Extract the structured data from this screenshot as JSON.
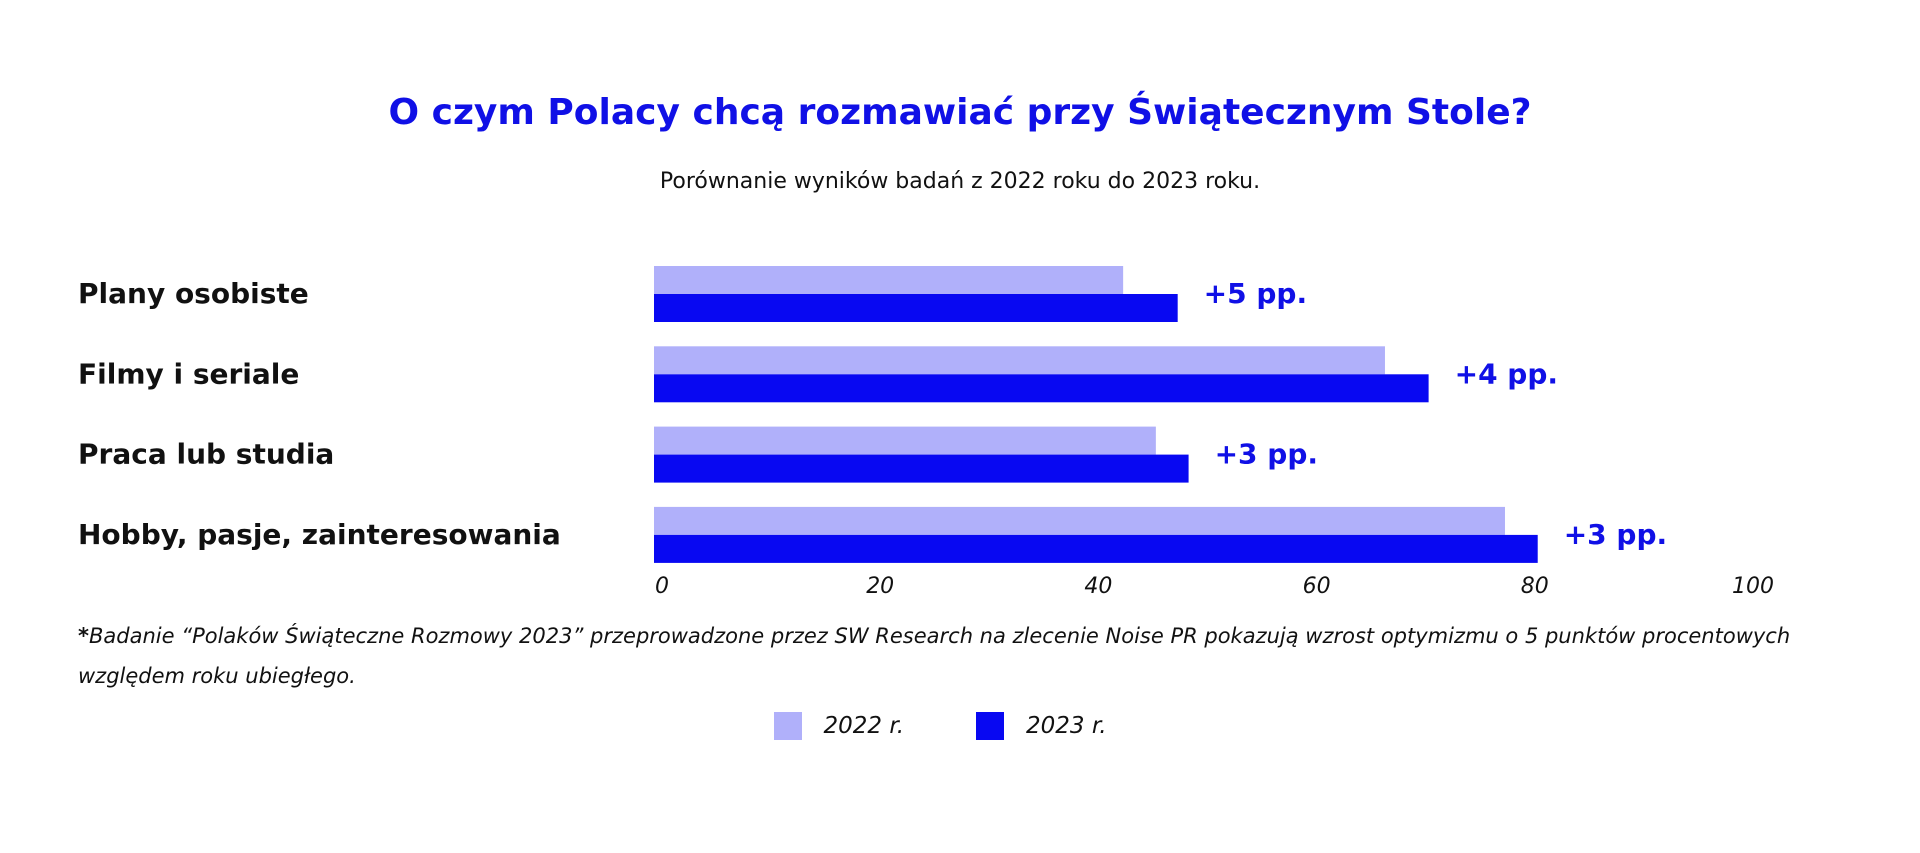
{
  "colors": {
    "accent": "#1010e6",
    "series_2022": "#b0b0fa",
    "series_2023": "#0808f2"
  },
  "chart_data": {
    "type": "bar",
    "orientation": "horizontal",
    "title": "O czym Polacy chcą rozmawiać przy Świątecznym Stole?",
    "subtitle": "Porównanie wyników badań z 2022 roku do 2023 roku.",
    "categories": [
      "Plany osobiste",
      "Filmy i seriale",
      "Praca lub studia",
      "Hobby, pasje, zainteresowania"
    ],
    "series": [
      {
        "name": "2022 r.",
        "values": [
          43,
          67,
          46,
          78
        ]
      },
      {
        "name": "2023 r.",
        "values": [
          48,
          71,
          49,
          81
        ]
      }
    ],
    "annotations": [
      "+5 pp.",
      "+4 pp.",
      "+3 pp.",
      "+3 pp."
    ],
    "xlim": [
      0,
      100
    ],
    "xticks": [
      "0",
      "20",
      "40",
      "60",
      "80",
      "100"
    ],
    "grid": false,
    "legend_position": "bottom-center"
  },
  "footnote": {
    "star": "*",
    "text": "Badanie “Polaków Świąteczne Rozmowy 2023” przeprowadzone przez SW Research na zlecenie Noise PR pokazują wzrost optymizmu o 5 punktów procentowych względem roku ubiegłego."
  }
}
